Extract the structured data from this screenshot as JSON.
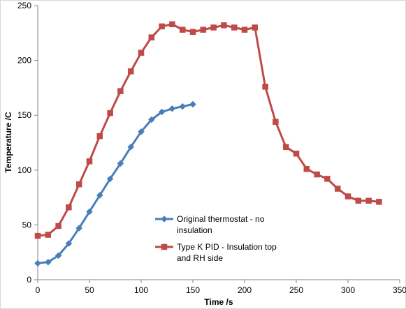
{
  "chart_data": {
    "type": "line",
    "title": "",
    "xlabel": "Time /s",
    "ylabel": "Temperature /C",
    "xlim": [
      0,
      350
    ],
    "ylim": [
      0,
      250
    ],
    "x_ticks": [
      0,
      50,
      100,
      150,
      200,
      250,
      300,
      350
    ],
    "y_ticks": [
      0,
      50,
      100,
      150,
      200,
      250
    ],
    "grid": false,
    "legend_position": "center",
    "series": [
      {
        "name": "Original thermostat - no insulation",
        "color": "#4a7ebb",
        "marker": "diamond",
        "x": [
          0,
          10,
          20,
          30,
          40,
          50,
          60,
          70,
          80,
          90,
          100,
          110,
          120,
          130,
          140,
          150
        ],
        "y": [
          15,
          16,
          22,
          33,
          47,
          62,
          77,
          92,
          106,
          121,
          135,
          146,
          153,
          156,
          158,
          160
        ]
      },
      {
        "name": "Type K PID - Insulation top and RH side",
        "color": "#be4b48",
        "marker": "square",
        "x": [
          0,
          10,
          20,
          30,
          40,
          50,
          60,
          70,
          80,
          90,
          100,
          110,
          120,
          130,
          140,
          150,
          160,
          170,
          180,
          190,
          200,
          210,
          220,
          230,
          240,
          250,
          260,
          270,
          280,
          290,
          300,
          310,
          320,
          330
        ],
        "y": [
          40,
          41,
          49,
          66,
          87,
          108,
          131,
          152,
          172,
          190,
          207,
          221,
          231,
          233,
          228,
          226,
          228,
          230,
          232,
          230,
          228,
          230,
          176,
          144,
          121,
          115,
          101,
          96,
          92,
          83,
          76,
          72,
          72,
          71
        ]
      }
    ],
    "legend": [
      {
        "lines": [
          "Original thermostat - no",
          "insulation"
        ]
      },
      {
        "lines": [
          "Type K PID - Insulation top",
          "and RH side"
        ]
      }
    ]
  }
}
